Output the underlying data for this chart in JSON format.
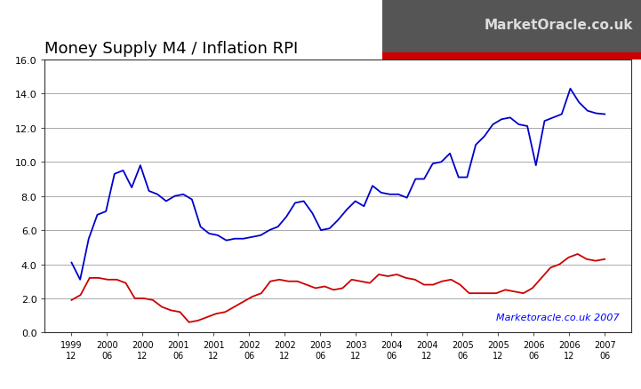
{
  "title": "Money Supply M4 / Inflation RPI",
  "title_fontsize": 13,
  "background_color": "#ffffff",
  "plot_bg_color": "#ffffff",
  "ylim": [
    0.0,
    16.0
  ],
  "yticks": [
    0.0,
    2.0,
    4.0,
    6.0,
    8.0,
    10.0,
    12.0,
    14.0,
    16.0
  ],
  "watermark": "Marketoracle.co.uk 2007",
  "blue_color": "#0000cc",
  "red_color": "#cc0000",
  "x_tick_labels": [
    "1999\n12",
    "2000\n06",
    "2000\n12",
    "2001\n06",
    "2001\n12",
    "2002\n06",
    "2002\n12",
    "2003\n06",
    "2003\n12",
    "2004\n06",
    "2004\n12",
    "2005\n06",
    "2005\n12",
    "2006\n06",
    "2006\n12",
    "2007\n06"
  ],
  "blue_data": [
    4.1,
    3.1,
    5.5,
    6.9,
    7.1,
    9.3,
    9.5,
    8.5,
    9.8,
    8.3,
    8.1,
    7.7,
    8.0,
    8.1,
    7.8,
    6.2,
    5.8,
    5.7,
    5.4,
    5.5,
    5.5,
    5.6,
    5.7,
    6.0,
    6.2,
    6.8,
    7.6,
    7.7,
    7.0,
    6.0,
    6.1,
    6.6,
    7.2,
    7.7,
    7.4,
    8.6,
    8.2,
    8.1,
    8.1,
    7.9,
    9.0,
    9.0,
    9.9,
    10.0,
    10.5,
    9.1,
    9.1,
    11.0,
    11.5,
    12.2,
    12.5,
    12.6,
    12.2,
    12.1,
    9.8,
    12.4,
    12.6,
    12.8,
    14.3,
    13.5,
    13.0,
    12.85,
    12.8
  ],
  "red_data": [
    1.9,
    2.2,
    3.2,
    3.2,
    3.1,
    3.1,
    2.9,
    2.0,
    2.0,
    1.9,
    1.5,
    1.3,
    1.2,
    0.6,
    0.7,
    0.9,
    1.1,
    1.2,
    1.5,
    1.8,
    2.1,
    2.3,
    3.0,
    3.1,
    3.0,
    3.0,
    2.8,
    2.6,
    2.7,
    2.5,
    2.6,
    3.1,
    3.0,
    2.9,
    3.4,
    3.3,
    3.4,
    3.2,
    3.1,
    2.8,
    2.8,
    3.0,
    3.1,
    2.8,
    2.3,
    2.3,
    2.3,
    2.3,
    2.5,
    2.4,
    2.3,
    2.6,
    3.2,
    3.8,
    4.0,
    4.4,
    4.6,
    4.3,
    4.2,
    4.3
  ],
  "logo_bg_color": "#555555",
  "logo_text_color": "#dddddd",
  "logo_stripe_color": "#cc0000",
  "logo_text": "MarketOracle.co.uk",
  "logo_fontsize": 11
}
